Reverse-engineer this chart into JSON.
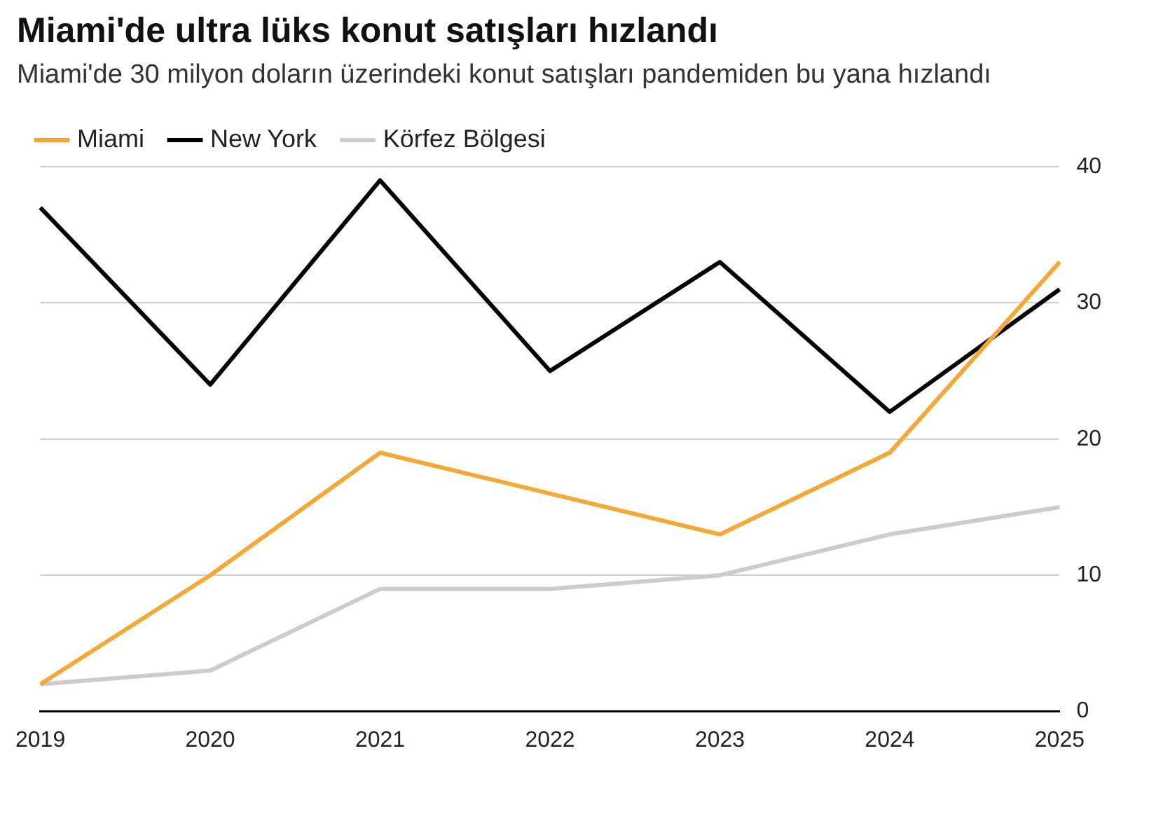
{
  "chart_data": {
    "type": "line",
    "title": "Miami'de ultra lüks konut satışları hızlandı",
    "subtitle": "Miami'de 30 milyon doların üzerindeki konut satışları pandemiden bu yana hızlandı",
    "categories": [
      "2019",
      "2020",
      "2021",
      "2022",
      "2023",
      "2024",
      "2025"
    ],
    "series": [
      {
        "name": "Miami",
        "color": "#f5a836",
        "values": [
          2,
          10,
          19,
          16,
          13,
          19,
          33
        ]
      },
      {
        "name": "New York",
        "color": "#000000",
        "values": [
          37,
          24,
          39,
          25,
          33,
          22,
          31
        ]
      },
      {
        "name": "Körfez Bölgesi",
        "color": "#cccccc",
        "values": [
          2,
          3,
          9,
          9,
          10,
          13,
          15
        ]
      }
    ],
    "ylim": [
      0,
      40
    ],
    "yticks": [
      0,
      10,
      20,
      30,
      40
    ],
    "grid": "y",
    "legend": "top left",
    "marker": "none",
    "line_style": "solid"
  }
}
